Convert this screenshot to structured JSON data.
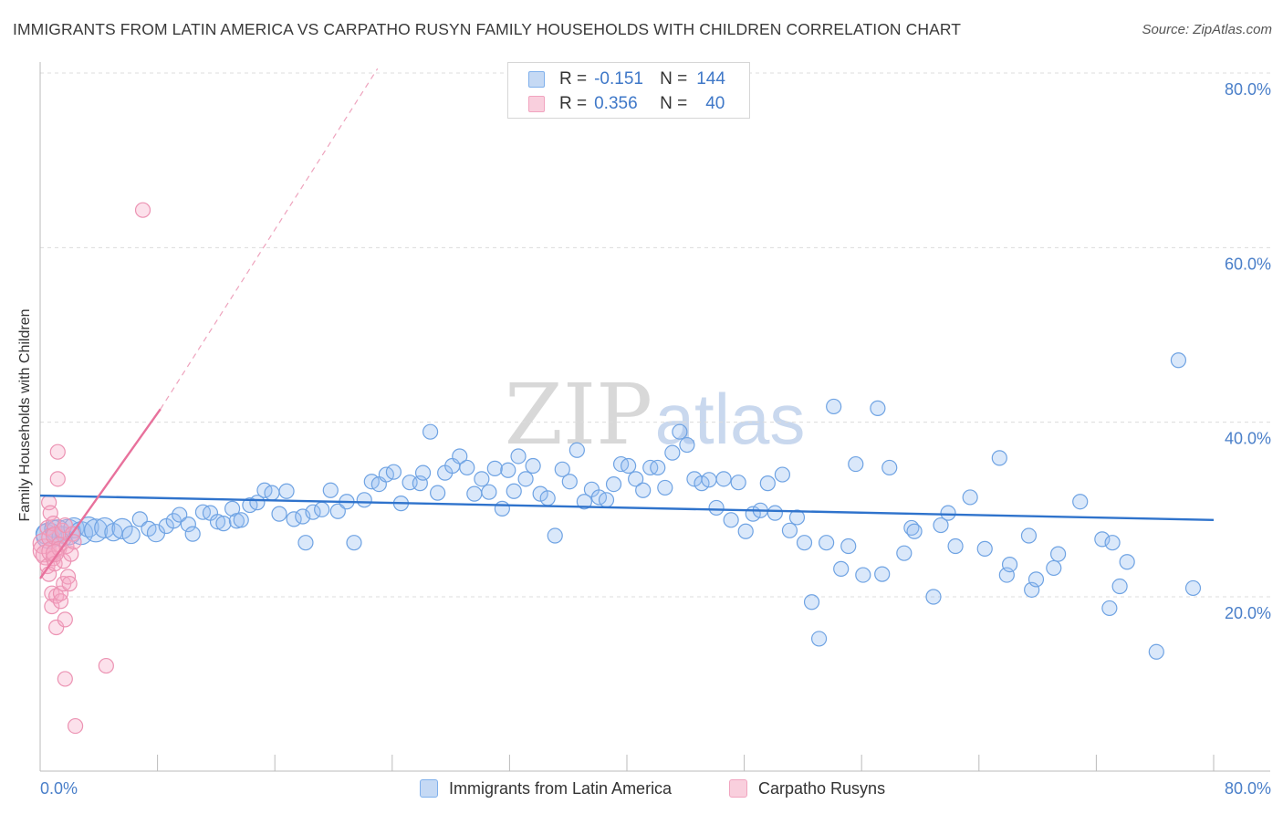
{
  "title": "IMMIGRANTS FROM LATIN AMERICA VS CARPATHO RUSYN FAMILY HOUSEHOLDS WITH CHILDREN CORRELATION CHART",
  "source": "Source: ZipAtlas.com",
  "watermark": {
    "zip": "ZIP",
    "atlas": "atlas"
  },
  "legend_top": [
    {
      "r_label": "R =",
      "r_value": "-0.151",
      "n_label": "N =",
      "n_value": "144",
      "color": "#7fb0ec"
    },
    {
      "r_label": "R =",
      "r_value": "0.356",
      "n_label": "N =",
      "n_value": "40",
      "color": "#f1a4bf"
    }
  ],
  "chart_data": {
    "type": "scatter",
    "title": "IMMIGRANTS FROM LATIN AMERICA VS CARPATHO RUSYN FAMILY HOUSEHOLDS WITH CHILDREN CORRELATION CHART",
    "xlabel": "",
    "ylabel": "Family Households with Children",
    "xlim": [
      0,
      80
    ],
    "ylim": [
      0,
      82
    ],
    "x_tick_labels": [
      "0.0%",
      "80.0%"
    ],
    "y_tick_labels": [
      {
        "value": 20,
        "label": "20.0%"
      },
      {
        "value": 40,
        "label": "40.0%"
      },
      {
        "value": 60,
        "label": "60.0%"
      },
      {
        "value": 80,
        "label": "80.0%"
      }
    ],
    "grid": true,
    "legend_position": "bottom",
    "series": [
      {
        "name": "Immigrants from Latin America",
        "color": "#7fb0ec",
        "trend": {
          "x": [
            0,
            80
          ],
          "y": [
            31.6,
            28.8
          ],
          "style": "solid"
        },
        "points": [
          [
            0.4,
            27.2,
            5
          ],
          [
            0.6,
            27.0,
            7
          ],
          [
            0.9,
            27.8,
            4
          ],
          [
            1.2,
            27.5,
            6
          ],
          [
            1.5,
            26.9,
            5
          ],
          [
            1.9,
            27.4,
            7
          ],
          [
            2.3,
            27.9,
            5
          ],
          [
            2.8,
            27.3,
            6
          ],
          [
            3.3,
            28.0,
            5
          ],
          [
            3.8,
            27.6,
            6
          ],
          [
            4.4,
            27.9,
            5
          ],
          [
            5.0,
            27.4,
            4
          ],
          [
            5.6,
            27.8,
            5
          ],
          [
            6.2,
            27.1,
            4
          ],
          [
            6.8,
            28.9,
            3
          ],
          [
            7.4,
            27.8,
            3
          ],
          [
            7.9,
            27.3,
            4
          ],
          [
            8.6,
            28.1,
            3
          ],
          [
            9.1,
            28.7,
            3
          ],
          [
            9.5,
            29.4,
            3
          ],
          [
            10.1,
            28.3,
            3
          ],
          [
            10.4,
            27.2,
            3
          ],
          [
            11.1,
            29.7,
            3
          ],
          [
            11.6,
            29.6,
            3
          ],
          [
            12.1,
            28.6,
            3
          ],
          [
            12.5,
            28.4,
            3
          ],
          [
            13.1,
            30.1,
            3
          ],
          [
            13.4,
            28.7,
            3
          ],
          [
            13.7,
            28.8,
            3
          ],
          [
            14.3,
            30.5,
            3
          ],
          [
            14.8,
            30.8,
            3
          ],
          [
            15.3,
            32.2,
            3
          ],
          [
            15.8,
            31.9,
            3
          ],
          [
            16.3,
            29.5,
            3
          ],
          [
            16.8,
            32.1,
            3
          ],
          [
            17.3,
            28.9,
            3
          ],
          [
            17.9,
            29.2,
            3
          ],
          [
            18.1,
            26.2,
            3
          ],
          [
            18.6,
            29.7,
            3
          ],
          [
            19.2,
            30.0,
            3
          ],
          [
            19.8,
            32.2,
            3
          ],
          [
            20.3,
            29.8,
            3
          ],
          [
            20.9,
            30.9,
            3
          ],
          [
            21.4,
            26.2,
            3
          ],
          [
            22.1,
            31.1,
            3
          ],
          [
            22.6,
            33.2,
            3
          ],
          [
            23.1,
            32.9,
            3
          ],
          [
            23.6,
            34.0,
            3
          ],
          [
            24.1,
            34.3,
            3
          ],
          [
            24.6,
            30.7,
            3
          ],
          [
            25.2,
            33.1,
            3
          ],
          [
            25.9,
            33.0,
            3
          ],
          [
            26.1,
            34.2,
            3
          ],
          [
            26.6,
            38.9,
            3
          ],
          [
            27.1,
            31.9,
            3
          ],
          [
            27.6,
            34.2,
            3
          ],
          [
            28.1,
            35.0,
            3
          ],
          [
            28.6,
            36.1,
            3
          ],
          [
            29.1,
            34.8,
            3
          ],
          [
            29.6,
            31.8,
            3
          ],
          [
            30.1,
            33.5,
            3
          ],
          [
            30.6,
            32.0,
            3
          ],
          [
            31.0,
            34.7,
            3
          ],
          [
            31.5,
            30.1,
            3
          ],
          [
            31.9,
            34.5,
            3
          ],
          [
            32.3,
            32.1,
            3
          ],
          [
            32.6,
            36.1,
            3
          ],
          [
            33.1,
            33.5,
            3
          ],
          [
            33.6,
            35.0,
            3
          ],
          [
            34.1,
            31.8,
            3
          ],
          [
            34.6,
            31.3,
            3
          ],
          [
            35.1,
            27.0,
            3
          ],
          [
            35.6,
            34.6,
            3
          ],
          [
            36.1,
            33.2,
            3
          ],
          [
            36.6,
            36.8,
            3
          ],
          [
            37.1,
            30.9,
            3
          ],
          [
            37.6,
            32.3,
            3
          ],
          [
            38.1,
            31.4,
            3
          ],
          [
            38.6,
            31.1,
            3
          ],
          [
            39.1,
            32.9,
            3
          ],
          [
            39.6,
            35.2,
            3
          ],
          [
            40.1,
            35.0,
            3
          ],
          [
            40.6,
            33.5,
            3
          ],
          [
            41.1,
            32.2,
            3
          ],
          [
            41.6,
            34.8,
            3
          ],
          [
            42.1,
            34.8,
            3
          ],
          [
            42.6,
            32.5,
            3
          ],
          [
            43.1,
            36.5,
            3
          ],
          [
            43.6,
            38.9,
            3
          ],
          [
            44.1,
            37.4,
            3
          ],
          [
            44.6,
            33.5,
            3
          ],
          [
            45.1,
            33.0,
            3
          ],
          [
            45.6,
            33.4,
            3
          ],
          [
            46.1,
            30.2,
            3
          ],
          [
            46.6,
            33.5,
            3
          ],
          [
            47.1,
            28.8,
            3
          ],
          [
            47.6,
            33.1,
            3
          ],
          [
            48.1,
            27.5,
            3
          ],
          [
            48.6,
            29.5,
            3
          ],
          [
            49.1,
            29.9,
            3
          ],
          [
            49.6,
            33.0,
            3
          ],
          [
            50.1,
            29.6,
            3
          ],
          [
            50.6,
            34.0,
            3
          ],
          [
            51.1,
            27.6,
            3
          ],
          [
            51.6,
            29.1,
            3
          ],
          [
            52.1,
            26.2,
            3
          ],
          [
            52.6,
            19.4,
            3
          ],
          [
            53.1,
            15.2,
            3
          ],
          [
            53.6,
            26.2,
            3
          ],
          [
            54.1,
            41.8,
            3
          ],
          [
            54.6,
            23.2,
            3
          ],
          [
            55.1,
            25.8,
            3
          ],
          [
            55.6,
            35.2,
            3
          ],
          [
            56.1,
            22.5,
            3
          ],
          [
            57.1,
            41.6,
            3
          ],
          [
            57.4,
            22.6,
            3
          ],
          [
            57.9,
            34.8,
            3
          ],
          [
            58.9,
            25.0,
            3
          ],
          [
            59.4,
            27.9,
            3
          ],
          [
            59.6,
            27.5,
            3
          ],
          [
            60.9,
            20.0,
            3
          ],
          [
            61.4,
            28.2,
            3
          ],
          [
            61.9,
            29.6,
            3
          ],
          [
            62.4,
            25.8,
            3
          ],
          [
            63.4,
            31.4,
            3
          ],
          [
            64.4,
            25.5,
            3
          ],
          [
            65.4,
            35.9,
            3
          ],
          [
            65.9,
            22.5,
            3
          ],
          [
            66.1,
            23.7,
            3
          ],
          [
            67.4,
            27.0,
            3
          ],
          [
            67.6,
            20.8,
            3
          ],
          [
            67.9,
            22.0,
            3
          ],
          [
            69.1,
            23.3,
            3
          ],
          [
            69.4,
            24.9,
            3
          ],
          [
            70.9,
            30.9,
            3
          ],
          [
            72.4,
            26.6,
            3
          ],
          [
            72.9,
            18.7,
            3
          ],
          [
            73.1,
            26.2,
            3
          ],
          [
            73.6,
            21.2,
            3
          ],
          [
            74.1,
            24.0,
            3
          ],
          [
            76.1,
            13.7,
            3
          ],
          [
            77.6,
            47.1,
            3
          ],
          [
            78.6,
            21.0,
            3
          ]
        ]
      },
      {
        "name": "Carpatho Rusyns",
        "color": "#f1a4bf",
        "trend": {
          "x": [
            0,
            8.2
          ],
          "y": [
            22.1,
            41.5
          ],
          "style": "solid",
          "extension": {
            "x": [
              8.2,
              23.0
            ],
            "y": [
              41.5,
              80.5
            ],
            "style": "dashed"
          }
        },
        "points": [
          [
            0.2,
            26.1,
            5
          ],
          [
            0.3,
            25.3,
            6
          ],
          [
            0.4,
            24.8,
            5
          ],
          [
            0.5,
            23.5,
            3
          ],
          [
            0.5,
            27.9,
            3
          ],
          [
            0.6,
            22.6,
            3
          ],
          [
            0.6,
            30.8,
            3
          ],
          [
            0.7,
            29.6,
            3
          ],
          [
            0.7,
            26.8,
            4
          ],
          [
            0.8,
            25.2,
            5
          ],
          [
            0.8,
            20.4,
            3
          ],
          [
            0.8,
            18.9,
            3
          ],
          [
            0.9,
            28.4,
            3
          ],
          [
            0.9,
            24.4,
            3
          ],
          [
            1.0,
            27.0,
            4
          ],
          [
            1.0,
            23.8,
            3
          ],
          [
            1.1,
            20.1,
            3
          ],
          [
            1.1,
            16.5,
            3
          ],
          [
            1.2,
            33.5,
            3
          ],
          [
            1.2,
            36.6,
            3
          ],
          [
            1.3,
            26.0,
            3
          ],
          [
            1.3,
            25.5,
            3
          ],
          [
            1.4,
            19.5,
            3
          ],
          [
            1.4,
            20.4,
            3
          ],
          [
            1.5,
            27.6,
            3
          ],
          [
            1.6,
            24.1,
            3
          ],
          [
            1.6,
            21.5,
            3
          ],
          [
            1.7,
            28.2,
            3
          ],
          [
            1.7,
            10.6,
            3
          ],
          [
            1.7,
            17.4,
            3
          ],
          [
            1.8,
            25.8,
            3
          ],
          [
            1.9,
            22.3,
            3
          ],
          [
            2.0,
            21.5,
            3
          ],
          [
            2.1,
            24.9,
            3
          ],
          [
            2.2,
            27.2,
            3
          ],
          [
            2.3,
            26.3,
            3
          ],
          [
            2.4,
            5.2,
            3
          ],
          [
            4.5,
            12.1,
            3
          ],
          [
            7.0,
            64.3,
            3
          ],
          [
            1.0,
            25.0,
            4
          ]
        ]
      }
    ]
  },
  "bottom_legend": [
    {
      "label": "Immigrants from Latin America",
      "color": "#7fb0ec"
    },
    {
      "label": "Carpatho Rusyns",
      "color": "#f1a4bf"
    }
  ]
}
